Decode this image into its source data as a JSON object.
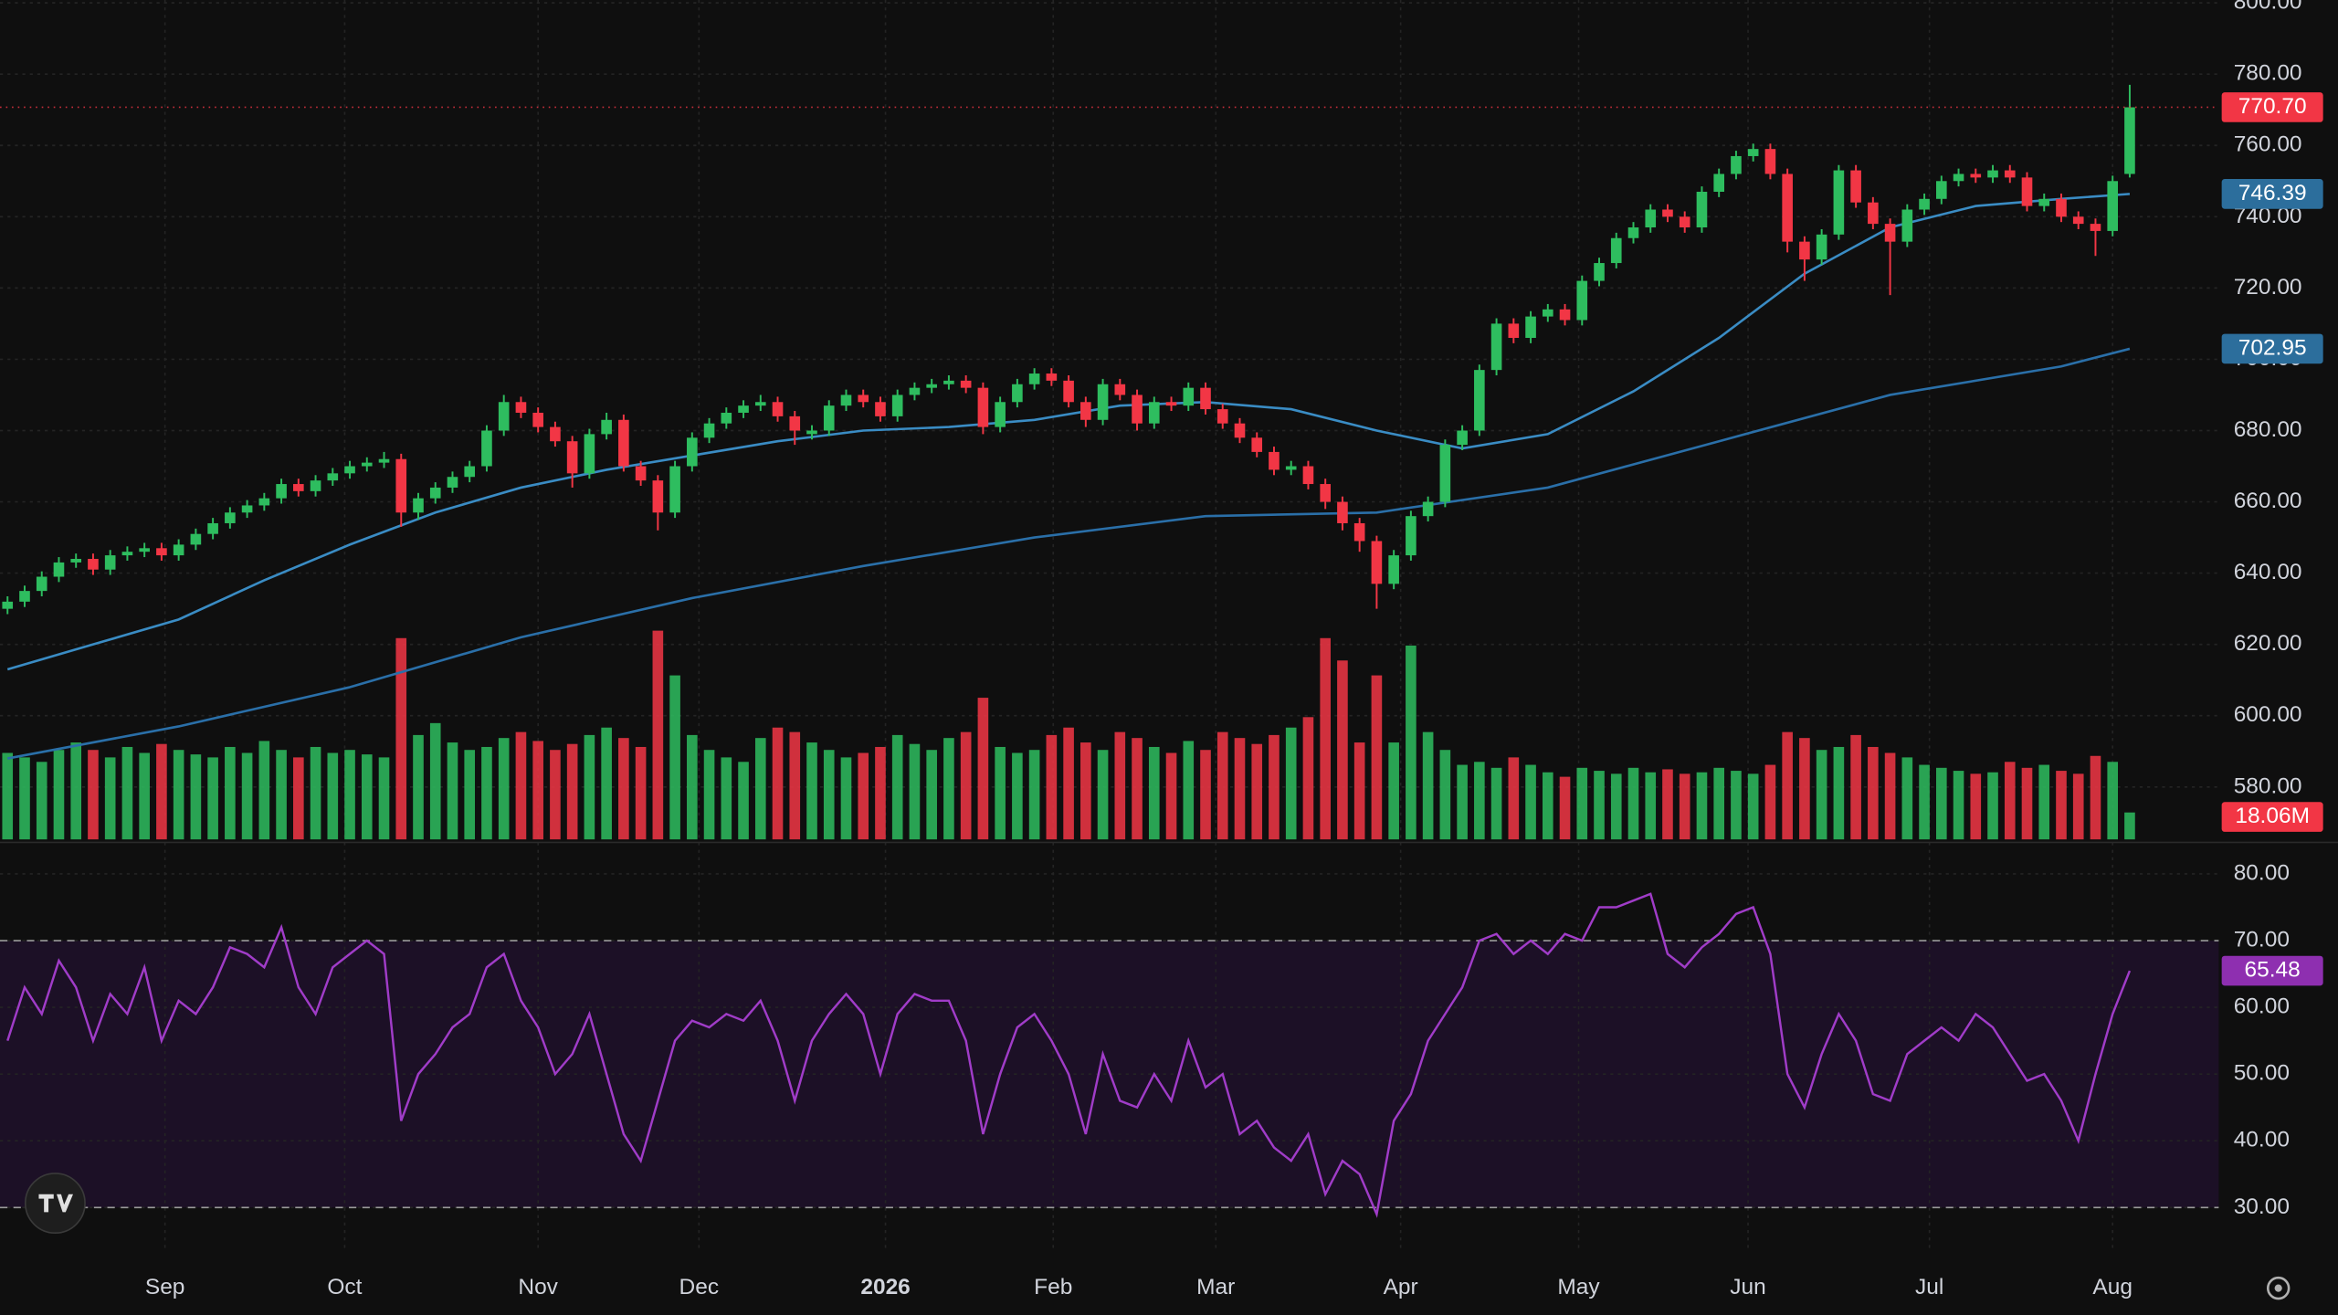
{
  "chart_data": {
    "type": "candlestick",
    "xlim": [
      -0.44,
      129.2
    ],
    "xticks": [
      {
        "value": 9.2,
        "label": "Sep"
      },
      {
        "value": 19.7,
        "label": "Oct"
      },
      {
        "value": 31.0,
        "label": "Nov"
      },
      {
        "value": 40.4,
        "label": "Dec"
      },
      {
        "value": 51.3,
        "label": "2026"
      },
      {
        "value": 61.1,
        "label": "Feb"
      },
      {
        "value": 70.6,
        "label": "Mar"
      },
      {
        "value": 81.4,
        "label": "Apr"
      },
      {
        "value": 91.8,
        "label": "May"
      },
      {
        "value": 101.7,
        "label": "Jun"
      },
      {
        "value": 112.3,
        "label": "Jul"
      },
      {
        "value": 123.0,
        "label": "Aug"
      }
    ],
    "ylim": [
      565.3,
      800.8
    ],
    "yticks": [
      {
        "value": 580,
        "label": "580.00"
      },
      {
        "value": 600,
        "label": "600.00"
      },
      {
        "value": 620,
        "label": "620.00"
      },
      {
        "value": 640,
        "label": "640.00"
      },
      {
        "value": 660,
        "label": "660.00"
      },
      {
        "value": 680,
        "label": "680.00"
      },
      {
        "value": 700,
        "label": "700.00"
      },
      {
        "value": 720,
        "label": "720.00"
      },
      {
        "value": 740,
        "label": "740.00"
      },
      {
        "value": 760,
        "label": "760.00"
      },
      {
        "value": 780,
        "label": "780.00"
      },
      {
        "value": 800,
        "label": "800.00"
      }
    ],
    "grid": true,
    "colors": {
      "up": "#2ebd5f",
      "down": "#f23645"
    },
    "ohlc": [
      [
        630,
        633.5,
        628.5,
        632
      ],
      [
        632,
        636.5,
        630.5,
        635
      ],
      [
        635,
        640.5,
        633.5,
        639
      ],
      [
        639,
        644.5,
        637.5,
        643
      ],
      [
        643,
        645.5,
        641.5,
        644
      ],
      [
        644,
        645.5,
        639.5,
        641
      ],
      [
        641,
        646.5,
        639.5,
        645
      ],
      [
        645,
        647.5,
        643.5,
        646
      ],
      [
        646,
        648.5,
        644.5,
        647
      ],
      [
        647,
        648.5,
        643.5,
        645
      ],
      [
        645,
        649.5,
        643.5,
        648
      ],
      [
        648,
        652.5,
        646.5,
        651
      ],
      [
        651,
        655.5,
        649.5,
        654
      ],
      [
        654,
        658.5,
        652.5,
        657
      ],
      [
        657,
        660.5,
        655.5,
        659
      ],
      [
        659,
        662.5,
        657.5,
        661
      ],
      [
        661,
        666.5,
        659.5,
        665
      ],
      [
        665,
        666.5,
        661.5,
        663
      ],
      [
        663,
        667.5,
        661.5,
        666
      ],
      [
        666,
        669.5,
        664.5,
        668
      ],
      [
        668,
        671.5,
        666.5,
        670
      ],
      [
        670,
        672.5,
        668.5,
        671
      ],
      [
        671,
        674,
        669.5,
        672
      ],
      [
        672,
        673.5,
        653,
        657
      ],
      [
        657,
        662.5,
        655,
        661
      ],
      [
        661,
        665.5,
        659.5,
        664
      ],
      [
        664,
        668.5,
        662.5,
        667
      ],
      [
        667,
        671.5,
        665.5,
        670
      ],
      [
        670,
        681.5,
        668.5,
        680
      ],
      [
        680,
        690,
        678.5,
        688
      ],
      [
        688,
        689.5,
        683.5,
        685
      ],
      [
        685,
        686.5,
        679.5,
        681
      ],
      [
        681,
        682.5,
        675.5,
        677
      ],
      [
        677,
        678.5,
        664,
        668
      ],
      [
        668,
        680.5,
        666.5,
        679
      ],
      [
        679,
        685,
        677.5,
        683
      ],
      [
        683,
        684.5,
        668.5,
        670
      ],
      [
        670,
        671.5,
        664.5,
        666
      ],
      [
        666,
        667.5,
        652,
        657
      ],
      [
        657,
        671.5,
        655.5,
        670
      ],
      [
        670,
        679.5,
        668.5,
        678
      ],
      [
        678,
        683.5,
        676.5,
        682
      ],
      [
        682,
        686.5,
        680.5,
        685
      ],
      [
        685,
        688.5,
        683.5,
        687
      ],
      [
        687,
        690,
        685.5,
        688
      ],
      [
        688,
        689.5,
        682.5,
        684
      ],
      [
        684,
        685.5,
        676,
        680
      ],
      [
        679,
        681.5,
        677.5,
        680
      ],
      [
        680,
        688.5,
        678.5,
        687
      ],
      [
        687,
        691.5,
        685.5,
        690
      ],
      [
        690,
        691.5,
        686.5,
        688
      ],
      [
        688,
        689.5,
        682.5,
        684
      ],
      [
        684,
        691.5,
        682.5,
        690
      ],
      [
        690,
        693.5,
        688.5,
        692
      ],
      [
        692,
        694.5,
        690.5,
        693
      ],
      [
        693,
        695.5,
        691.5,
        694
      ],
      [
        694,
        695.5,
        690.5,
        692
      ],
      [
        692,
        693.5,
        679,
        681
      ],
      [
        681,
        689.5,
        679.5,
        688
      ],
      [
        688,
        694.5,
        686.5,
        693
      ],
      [
        693,
        697.5,
        691.5,
        696
      ],
      [
        696,
        697.5,
        692.5,
        694
      ],
      [
        694,
        695.5,
        686.5,
        688
      ],
      [
        688,
        689.5,
        681,
        683
      ],
      [
        683,
        694.5,
        681.5,
        693
      ],
      [
        693,
        694.5,
        688.5,
        690
      ],
      [
        690,
        691.5,
        680,
        682
      ],
      [
        682,
        689.5,
        680.5,
        688
      ],
      [
        688,
        689.5,
        685.5,
        687
      ],
      [
        687,
        693.5,
        685.5,
        692
      ],
      [
        692,
        693.5,
        684.5,
        686
      ],
      [
        686,
        687.5,
        680.5,
        682
      ],
      [
        682,
        683.5,
        676.5,
        678
      ],
      [
        678,
        679.5,
        672.5,
        674
      ],
      [
        674,
        675.5,
        667.5,
        669
      ],
      [
        669,
        671.5,
        667.5,
        670
      ],
      [
        670,
        671.5,
        663.5,
        665
      ],
      [
        665,
        666.5,
        658,
        660
      ],
      [
        660,
        661.5,
        652,
        654
      ],
      [
        654,
        655.5,
        646,
        649
      ],
      [
        649,
        650.5,
        630,
        637
      ],
      [
        637,
        646.5,
        635.5,
        645
      ],
      [
        645,
        657.5,
        643.5,
        656
      ],
      [
        656,
        661.5,
        654.5,
        660
      ],
      [
        660,
        677.5,
        658.5,
        676
      ],
      [
        676,
        681.5,
        674.5,
        680
      ],
      [
        680,
        698.5,
        678.5,
        697
      ],
      [
        697,
        711.5,
        695.5,
        710
      ],
      [
        710,
        711.5,
        704.5,
        706
      ],
      [
        706,
        713.5,
        704.5,
        712
      ],
      [
        712,
        715.5,
        710.5,
        714
      ],
      [
        714,
        715.5,
        709.5,
        711
      ],
      [
        711,
        723.5,
        709.5,
        722
      ],
      [
        722,
        728.5,
        720.5,
        727
      ],
      [
        727,
        735.5,
        725.5,
        734
      ],
      [
        734,
        738.5,
        732.5,
        737
      ],
      [
        737,
        743.5,
        735.5,
        742
      ],
      [
        742,
        743.5,
        738.5,
        740
      ],
      [
        740,
        741.5,
        735.5,
        737
      ],
      [
        737,
        748.5,
        735.5,
        747
      ],
      [
        747,
        753.5,
        745.5,
        752
      ],
      [
        752,
        758.5,
        750.5,
        757
      ],
      [
        757,
        760.5,
        755.5,
        759
      ],
      [
        759,
        760.5,
        750.5,
        752
      ],
      [
        752,
        753.5,
        730,
        733
      ],
      [
        733,
        734.5,
        722,
        728
      ],
      [
        728,
        736.5,
        726.5,
        735
      ],
      [
        735,
        754.5,
        733.5,
        753
      ],
      [
        753,
        754.5,
        742.5,
        744
      ],
      [
        744,
        745.5,
        736.5,
        738
      ],
      [
        738,
        739.5,
        718,
        733
      ],
      [
        733,
        743.5,
        731.5,
        742
      ],
      [
        742,
        746.5,
        740.5,
        745
      ],
      [
        745,
        751.5,
        743.5,
        750
      ],
      [
        750,
        753.5,
        748.5,
        752
      ],
      [
        752,
        753.5,
        749.5,
        751
      ],
      [
        751,
        754.5,
        749.5,
        753
      ],
      [
        753,
        754.5,
        749.5,
        751
      ],
      [
        751,
        752.5,
        741.5,
        743
      ],
      [
        743,
        746.5,
        741.5,
        745
      ],
      [
        745,
        746.5,
        738.5,
        740
      ],
      [
        740,
        741.5,
        736.5,
        738
      ],
      [
        738,
        739.5,
        729,
        736
      ],
      [
        736,
        751.5,
        734.5,
        750
      ],
      [
        752,
        777,
        751,
        770.7
      ]
    ],
    "close_label": "770.70",
    "moving_averages": [
      {
        "color": "#3a8cc4",
        "x": [
          0,
          5,
          10,
          15,
          20,
          25,
          30,
          35,
          40,
          45,
          50,
          55,
          60,
          65,
          70,
          75,
          80,
          85,
          90,
          95,
          100,
          105,
          110,
          115,
          120,
          124
        ],
        "values": [
          613,
          620,
          627,
          638,
          648,
          657,
          664,
          669,
          673,
          677,
          680,
          681,
          683,
          687,
          688,
          686,
          680,
          675,
          679,
          691,
          706,
          724,
          737,
          743,
          745,
          746.39
        ]
      },
      {
        "color": "#2a6fa8",
        "x": [
          0,
          10,
          20,
          30,
          40,
          50,
          60,
          70,
          80,
          90,
          100,
          110,
          120,
          124
        ],
        "values": [
          588,
          597,
          608,
          622,
          633,
          642,
          650,
          656,
          657,
          664,
          677,
          690,
          698,
          702.95
        ]
      }
    ],
    "volume": {
      "ylim": [
        0,
        150
      ],
      "values": [
        58,
        55,
        52,
        60,
        65,
        60,
        55,
        62,
        58,
        64,
        60,
        57,
        55,
        62,
        58,
        66,
        60,
        55,
        62,
        58,
        60,
        57,
        55,
        135,
        70,
        78,
        65,
        60,
        62,
        68,
        72,
        66,
        60,
        64,
        70,
        75,
        68,
        62,
        140,
        110,
        70,
        60,
        55,
        52,
        68,
        75,
        72,
        65,
        60,
        55,
        58,
        62,
        70,
        64,
        60,
        68,
        72,
        95,
        62,
        58,
        60,
        70,
        75,
        65,
        60,
        72,
        68,
        62,
        58,
        66,
        60,
        72,
        68,
        64,
        70,
        75,
        82,
        135,
        120,
        65,
        110,
        65,
        130,
        72,
        60,
        50,
        52,
        48,
        55,
        50,
        45,
        42,
        48,
        46,
        44,
        48,
        45,
        47,
        44,
        45,
        48,
        46,
        44,
        50,
        72,
        68,
        60,
        62,
        70,
        62,
        58,
        55,
        50,
        48,
        46,
        44,
        45,
        52,
        48,
        50,
        46,
        44,
        56,
        52,
        18.06
      ],
      "last_label": "18.06M"
    },
    "rsi": {
      "color": "#a03cc8",
      "ylim": [
        23.5,
        84.5
      ],
      "yticks": [
        {
          "value": 30,
          "label": "30.00"
        },
        {
          "value": 40,
          "label": "40.00"
        },
        {
          "value": 50,
          "label": "50.00"
        },
        {
          "value": 60,
          "label": "60.00"
        },
        {
          "value": 70,
          "label": "70.00"
        },
        {
          "value": 80,
          "label": "80.00"
        }
      ],
      "bands": [
        30,
        70
      ],
      "values": [
        55,
        63,
        59,
        67,
        63,
        55,
        62,
        59,
        66,
        55,
        61,
        59,
        63,
        69,
        68,
        66,
        72,
        63,
        59,
        66,
        68,
        70,
        68,
        43,
        50,
        53,
        57,
        59,
        66,
        68,
        61,
        57,
        50,
        53,
        59,
        50,
        41,
        37,
        46,
        55,
        58,
        57,
        59,
        58,
        61,
        55,
        46,
        55,
        59,
        62,
        59,
        50,
        59,
        62,
        61,
        61,
        55,
        41,
        50,
        57,
        59,
        55,
        50,
        41,
        53,
        46,
        45,
        50,
        46,
        55,
        48,
        50,
        41,
        43,
        39,
        37,
        41,
        32,
        37,
        35,
        29,
        43,
        47,
        55,
        59,
        63,
        70,
        71,
        68,
        70,
        68,
        71,
        70,
        75,
        75,
        76,
        77,
        68,
        66,
        69,
        71,
        74,
        75,
        68,
        50,
        45,
        53,
        59,
        55,
        47,
        46,
        53,
        55,
        57,
        55,
        59,
        57,
        53,
        49,
        50,
        46,
        40,
        50,
        59,
        65.48
      ]
    }
  }
}
